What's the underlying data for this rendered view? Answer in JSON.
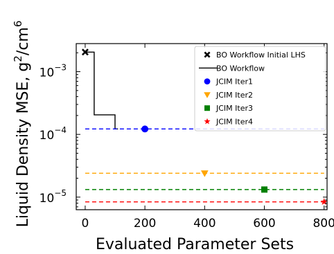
{
  "chart_data": {
    "type": "line",
    "xlabel": "Evaluated Parameter Sets",
    "ylabel_base": "Liquid Density MSE, g",
    "ylabel_sup1": "2",
    "ylabel_mid": "/cm",
    "ylabel_sup2": "6",
    "xlim": [
      -30,
      810
    ],
    "ylim": [
      6.3e-06,
      0.0028
    ],
    "yscale": "log",
    "x_ticks": [
      0,
      200,
      400,
      600,
      800
    ],
    "x_tick_labels": [
      "0",
      "200",
      "400",
      "600",
      "800"
    ],
    "y_ticks": [
      1e-05,
      0.0001,
      0.001
    ],
    "y_tick_labels": [
      {
        "base": "10",
        "exp": "−5"
      },
      {
        "base": "10",
        "exp": "−4"
      },
      {
        "base": "10",
        "exp": "−3"
      }
    ],
    "legend_position": "top-right",
    "series": [
      {
        "name": "BO Workflow Initial LHS",
        "kind": "scatter",
        "marker": "x",
        "color": "#000000",
        "points": [
          [
            0,
            0.00205
          ]
        ]
      },
      {
        "name": "BO Workflow",
        "kind": "step",
        "color": "#000000",
        "points": [
          [
            0,
            0.00205
          ],
          [
            30,
            0.00205
          ],
          [
            30,
            0.000205
          ],
          [
            100,
            0.000205
          ],
          [
            100,
            0.000122
          ],
          [
            110,
            0.000122
          ]
        ]
      },
      {
        "name": "JCIM Iter1",
        "kind": "hline",
        "marker": "circle",
        "color": "#0000ff",
        "y": 0.000122,
        "marker_x": 200
      },
      {
        "name": "JCIM Iter2",
        "kind": "hline",
        "marker": "triangle-down",
        "color": "#ffa500",
        "y": 2.4e-05,
        "marker_x": 400
      },
      {
        "name": "JCIM Iter3",
        "kind": "hline",
        "marker": "square",
        "color": "#008000",
        "y": 1.32e-05,
        "marker_x": 600
      },
      {
        "name": "JCIM Iter4",
        "kind": "hline",
        "marker": "star",
        "color": "#ff0000",
        "y": 8.4e-06,
        "marker_x": 800
      }
    ]
  }
}
